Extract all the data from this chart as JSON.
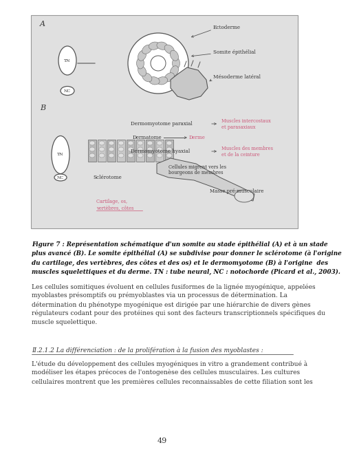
{
  "bg_color": "#ffffff",
  "fig_bg_color": "#e0e0e0",
  "figure_caption_bold": "Figure 7 : Représentation schématique d'un somite au stade épithélial (A) et à un stade\nplus avancé (B). Le somite épithélial (A) se subdivise pour donner le sclérotome (à l'origine\ndu cartilage, des vertèbres, des côtes et des os) et le dermomyotome (B) à l'origine  des\nmuscles squelettiques et du derme. TN : tube neural, NC : notochorde (Picard et al., 2003).",
  "paragraph1": "Les cellules somitiques évoluent en cellules fusiformes de la lignée myogénique, appelées\nmyoblastes présomptifs ou prémyoblastes via un processus de détermination. La\ndétermination du phénotype myogénique est dirigée par une hiérarchie de divers gènes\nrégulateurs codant pour des protéines qui sont des facteurs transcriptionnels spécifiques du\nmuscle squelettique.",
  "section_heading": "II.2.1.2 La différenciation : de la prolifération à la fusion des myoblastes :",
  "paragraph2": "L'étude du développement des cellules myogéniques in vitro a grandement contribué à\nmodéliser les étapes précoces de l'ontogenèse des cellules musculaires. Les cultures\ncellulaires montrent que les premières cellules reconnaissables de cette filiation sont les",
  "page_number": "49",
  "pink_color": "#cc5577",
  "dark_color": "#333333",
  "text_color": "#404040",
  "line_color": "#555555",
  "fig_edge_color": "#999999"
}
